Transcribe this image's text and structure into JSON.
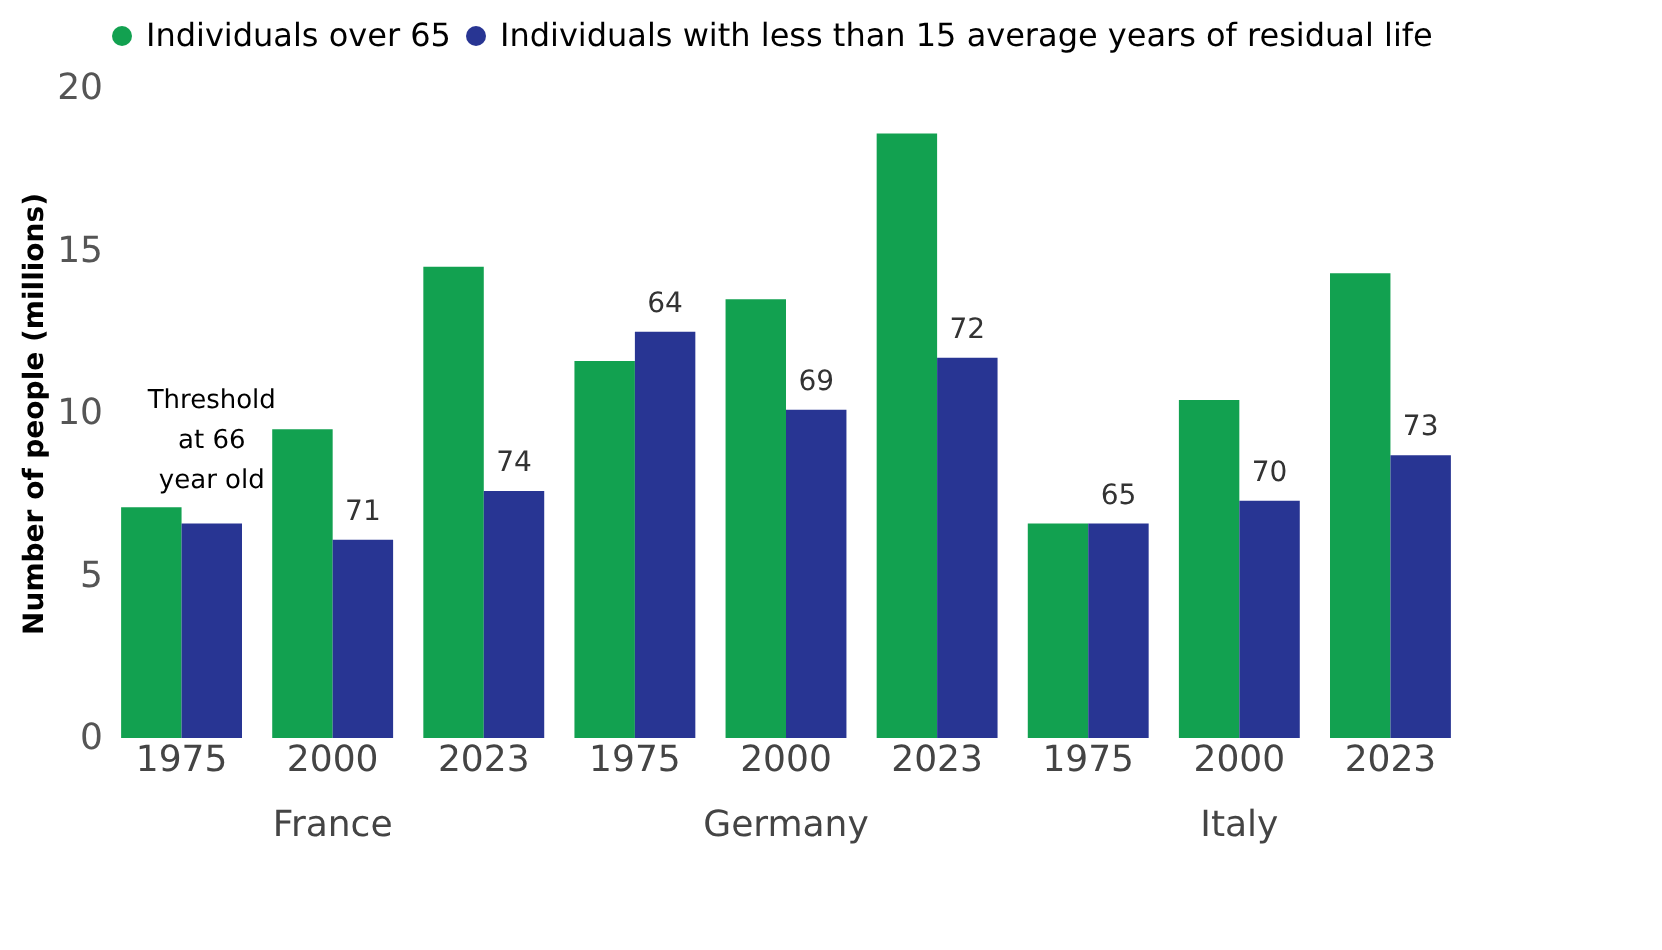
{
  "chart_data": {
    "type": "bar",
    "ylabel": "Number of people (millions)",
    "categories": [
      "1975",
      "2000",
      "2023",
      "1975",
      "2000",
      "2023",
      "1975",
      "2000",
      "2023"
    ],
    "series": [
      {
        "name": "Individuals over 65",
        "color": "#12a150",
        "values": [
          7.1,
          9.5,
          14.5,
          11.6,
          13.5,
          18.6,
          6.6,
          10.4,
          14.3
        ]
      },
      {
        "name": "Individuals with less than 15 average years of residual life",
        "color": "#283593",
        "values": [
          6.6,
          6.1,
          7.6,
          12.5,
          10.1,
          11.7,
          6.6,
          7.3,
          8.7
        ]
      }
    ],
    "ylim": [
      0,
      20
    ],
    "yticks": [
      0,
      5,
      10,
      15,
      20
    ],
    "grid": false,
    "legend": "top right",
    "annotations": [
      "France",
      "Germany",
      "Italy",
      {
        "text": "Threshold at 66 year old",
        "x": "1975",
        "y": 6.6
      },
      "71",
      "74",
      "64",
      "69",
      "72",
      "65",
      "70",
      "73"
    ]
  }
}
